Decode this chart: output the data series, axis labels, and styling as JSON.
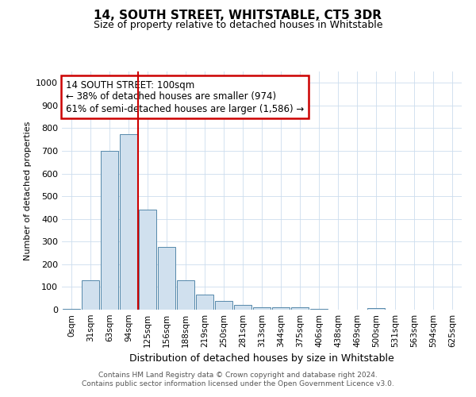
{
  "title": "14, SOUTH STREET, WHITSTABLE, CT5 3DR",
  "subtitle": "Size of property relative to detached houses in Whitstable",
  "xlabel": "Distribution of detached houses by size in Whitstable",
  "ylabel": "Number of detached properties",
  "footer_line1": "Contains HM Land Registry data © Crown copyright and database right 2024.",
  "footer_line2": "Contains public sector information licensed under the Open Government Licence v3.0.",
  "annotation_line1": "14 SOUTH STREET: 100sqm",
  "annotation_line2": "← 38% of detached houses are smaller (974)",
  "annotation_line3": "61% of semi-detached houses are larger (1,586) →",
  "bar_labels": [
    "0sqm",
    "31sqm",
    "63sqm",
    "94sqm",
    "125sqm",
    "156sqm",
    "188sqm",
    "219sqm",
    "250sqm",
    "281sqm",
    "313sqm",
    "344sqm",
    "375sqm",
    "406sqm",
    "438sqm",
    "469sqm",
    "500sqm",
    "531sqm",
    "563sqm",
    "594sqm",
    "625sqm"
  ],
  "bar_values": [
    5,
    128,
    700,
    775,
    440,
    275,
    130,
    68,
    38,
    22,
    12,
    12,
    10,
    5,
    0,
    0,
    7,
    0,
    0,
    0,
    0
  ],
  "bar_color": "#d0e0ee",
  "bar_edge_color": "#5588aa",
  "red_line_index": 3,
  "ylim": [
    0,
    1050
  ],
  "yticks": [
    0,
    100,
    200,
    300,
    400,
    500,
    600,
    700,
    800,
    900,
    1000
  ],
  "bg_color": "#ffffff",
  "grid_color": "#ccddee",
  "annotation_box_color": "#cc0000",
  "red_line_color": "#cc0000",
  "title_fontsize": 11,
  "subtitle_fontsize": 9,
  "xlabel_fontsize": 9,
  "ylabel_fontsize": 8,
  "tick_fontsize": 8,
  "xtick_fontsize": 7.5,
  "footer_fontsize": 6.5,
  "ann_fontsize": 8.5
}
